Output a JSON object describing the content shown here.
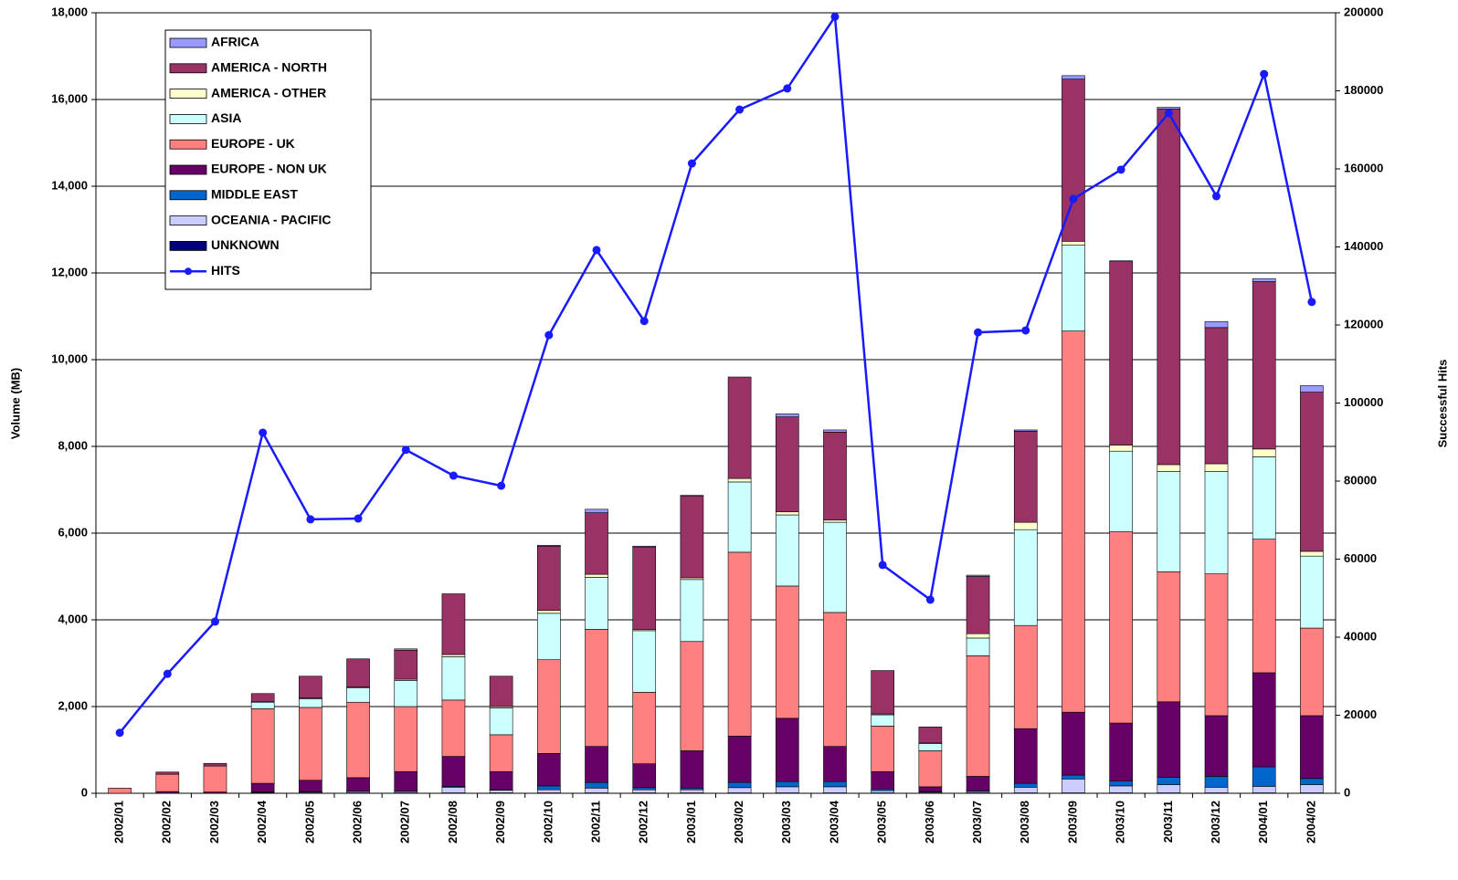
{
  "chart_data": {
    "type": "bar",
    "stacked": true,
    "y_label": "Volume (MB)",
    "y2_label": "Successful Hits",
    "categories": [
      "2002/01",
      "2002/02",
      "2002/03",
      "2002/04",
      "2002/05",
      "2002/06",
      "2002/07",
      "2002/08",
      "2002/09",
      "2002/10",
      "2002/11",
      "2002/12",
      "2003/01",
      "2003/02",
      "2003/03",
      "2003/04",
      "2003/05",
      "2003/06",
      "2003/07",
      "2003/08",
      "2003/09",
      "2003/10",
      "2003/11",
      "2003/12",
      "2004/01",
      "2004/02"
    ],
    "series": [
      {
        "name": "UNKNOWN",
        "color": "#000080",
        "values": [
          0,
          0,
          0,
          10,
          10,
          10,
          10,
          10,
          10,
          10,
          10,
          10,
          10,
          10,
          10,
          10,
          10,
          10,
          10,
          10,
          10,
          10,
          10,
          10,
          10,
          10
        ]
      },
      {
        "name": "OCEANIA - PACIFIC",
        "color": "#ccccff",
        "values": [
          0,
          0,
          0,
          10,
          20,
          30,
          30,
          130,
          60,
          70,
          110,
          70,
          70,
          120,
          140,
          140,
          50,
          20,
          30,
          130,
          320,
          160,
          190,
          130,
          150,
          190
        ]
      },
      {
        "name": "MIDDLE EAST",
        "color": "#0066cc",
        "values": [
          0,
          0,
          0,
          10,
          10,
          10,
          10,
          20,
          10,
          90,
          130,
          50,
          40,
          120,
          120,
          120,
          40,
          10,
          20,
          90,
          90,
          110,
          170,
          250,
          450,
          140
        ]
      },
      {
        "name": "EUROPE - NON UK",
        "color": "#660066",
        "values": [
          0,
          40,
          30,
          200,
          260,
          310,
          450,
          690,
          420,
          750,
          830,
          550,
          860,
          1070,
          1460,
          810,
          400,
          110,
          330,
          1260,
          1450,
          1340,
          1740,
          1400,
          2170,
          1450
        ]
      },
      {
        "name": "EUROPE - UK",
        "color": "#ff8080",
        "values": [
          120,
          400,
          600,
          1720,
          1680,
          1740,
          1500,
          1300,
          850,
          2160,
          2700,
          1650,
          2520,
          4240,
          3050,
          3090,
          1050,
          830,
          2780,
          2380,
          8790,
          4410,
          3000,
          3270,
          3080,
          2020
        ]
      },
      {
        "name": "ASIA",
        "color": "#ccffff",
        "values": [
          0,
          0,
          0,
          150,
          200,
          330,
          600,
          1000,
          620,
          1070,
          1200,
          1420,
          1430,
          1620,
          1640,
          2080,
          260,
          170,
          410,
          2210,
          1980,
          1860,
          2310,
          2360,
          1900,
          1660
        ]
      },
      {
        "name": "AMERICA - OTHER",
        "color": "#ffffcc",
        "values": [
          0,
          0,
          0,
          10,
          20,
          20,
          30,
          50,
          30,
          70,
          70,
          30,
          40,
          80,
          70,
          50,
          20,
          10,
          100,
          170,
          90,
          140,
          160,
          180,
          180,
          110
        ]
      },
      {
        "name": "AMERICA - NORTH",
        "color": "#993366",
        "values": [
          0,
          50,
          60,
          190,
          500,
          650,
          670,
          1400,
          700,
          1480,
          1420,
          1900,
          1890,
          2340,
          2190,
          2030,
          1000,
          370,
          1320,
          2100,
          3740,
          4230,
          8200,
          3140,
          3860,
          3670
        ]
      },
      {
        "name": "AFRICA",
        "color": "#9999ff",
        "values": [
          0,
          0,
          0,
          0,
          0,
          0,
          30,
          0,
          0,
          20,
          80,
          20,
          10,
          0,
          70,
          50,
          0,
          0,
          30,
          30,
          80,
          20,
          40,
          140,
          70,
          150
        ]
      },
      {
        "name": "HITS",
        "color": "#1a1aff",
        "type": "line",
        "axis": "y2",
        "values": [
          15500,
          30600,
          44000,
          92400,
          70200,
          70400,
          88000,
          81400,
          78800,
          117400,
          139200,
          121000,
          161400,
          175200,
          180600,
          199000,
          58500,
          49600,
          118100,
          118600,
          152300,
          159800,
          174300,
          153000,
          184300,
          125900
        ]
      }
    ],
    "ylim": [
      0,
      18000
    ],
    "yticks": [
      0,
      {
        "value": 2000,
        "label": "2,000"
      },
      {
        "value": 4000,
        "label": "4,000"
      },
      {
        "value": 6000,
        "label": "6,000"
      },
      {
        "value": 8000,
        "label": "8,000"
      },
      {
        "value": 10000,
        "label": "10,000"
      },
      {
        "value": 12000,
        "label": "12,000"
      },
      {
        "value": 14000,
        "label": "14,000"
      },
      {
        "value": 16000,
        "label": "16,000"
      },
      {
        "value": 18000,
        "label": "18,000"
      }
    ],
    "y2lim": [
      0,
      200000
    ],
    "y2ticks": [
      0,
      20000,
      40000,
      60000,
      80000,
      100000,
      120000,
      140000,
      160000,
      180000,
      200000
    ],
    "grid": true,
    "legend": "top-left"
  }
}
